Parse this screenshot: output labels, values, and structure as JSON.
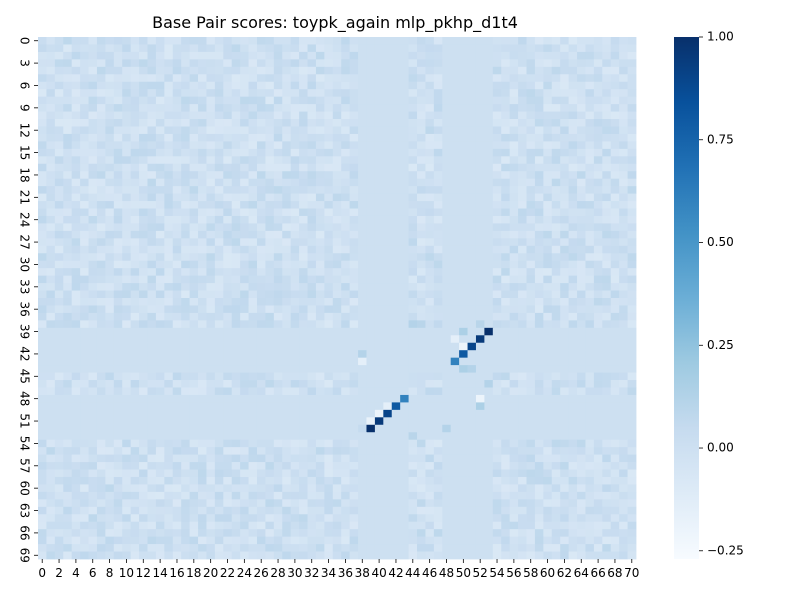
{
  "chart_data": {
    "type": "heatmap",
    "title": "Base Pair scores: toypk_again mlp_pkhp_d1t4",
    "xlabel": "",
    "ylabel": "",
    "n_rows": 70,
    "n_cols": 71,
    "x_tick_labels": [
      "0",
      "2",
      "4",
      "6",
      "8",
      "10",
      "12",
      "14",
      "16",
      "18",
      "20",
      "22",
      "24",
      "26",
      "28",
      "30",
      "32",
      "34",
      "36",
      "38",
      "40",
      "42",
      "44",
      "46",
      "48",
      "50",
      "52",
      "54",
      "56",
      "58",
      "60",
      "62",
      "64",
      "66",
      "68",
      "70"
    ],
    "y_tick_labels": [
      "0",
      "3",
      "6",
      "9",
      "12",
      "15",
      "18",
      "21",
      "24",
      "27",
      "30",
      "33",
      "36",
      "39",
      "42",
      "45",
      "48",
      "51",
      "54",
      "57",
      "60",
      "63",
      "66",
      "69"
    ],
    "y_tick_positions": [
      0,
      3,
      6,
      9,
      12,
      15,
      18,
      21,
      24,
      27,
      30,
      33,
      36,
      39,
      42,
      45,
      48,
      51,
      54,
      57,
      60,
      63,
      66,
      69
    ],
    "colorbar": {
      "min": -0.27,
      "max": 1.0,
      "tick_labels": [
        "1.00",
        "0.75",
        "0.50",
        "0.25",
        "0.00",
        "−0.25"
      ],
      "tick_values": [
        1.0,
        0.75,
        0.5,
        0.25,
        0.0,
        -0.25
      ]
    },
    "colormap": "Blues",
    "background_value": 0.0,
    "background_noise_amplitude": 0.08,
    "uniform_rows": [
      39,
      40,
      41,
      42,
      43,
      44,
      48,
      49,
      50,
      51,
      52,
      53
    ],
    "uniform_cols": [
      38,
      39,
      40,
      41,
      42,
      43,
      48,
      49,
      50,
      51,
      52,
      53
    ],
    "strong_pairs": [
      {
        "row": 39,
        "col": 53,
        "value": 1.0
      },
      {
        "row": 40,
        "col": 52,
        "value": 0.95
      },
      {
        "row": 41,
        "col": 51,
        "value": 0.9
      },
      {
        "row": 42,
        "col": 50,
        "value": 0.8
      },
      {
        "row": 43,
        "col": 49,
        "value": 0.6
      },
      {
        "row": 48,
        "col": 43,
        "value": 0.6
      },
      {
        "row": 49,
        "col": 42,
        "value": 0.8
      },
      {
        "row": 50,
        "col": 41,
        "value": 0.9
      },
      {
        "row": 51,
        "col": 40,
        "value": 0.95
      },
      {
        "row": 52,
        "col": 39,
        "value": 1.0
      }
    ],
    "weak_cells": [
      {
        "row": 38,
        "col": 44,
        "value": 0.12
      },
      {
        "row": 38,
        "col": 45,
        "value": 0.1
      },
      {
        "row": 38,
        "col": 52,
        "value": 0.1
      },
      {
        "row": 39,
        "col": 50,
        "value": 0.15
      },
      {
        "row": 40,
        "col": 49,
        "value": -0.15
      },
      {
        "row": 41,
        "col": 50,
        "value": -0.2
      },
      {
        "row": 42,
        "col": 38,
        "value": 0.12
      },
      {
        "row": 43,
        "col": 38,
        "value": -0.15
      },
      {
        "row": 44,
        "col": 50,
        "value": 0.15
      },
      {
        "row": 44,
        "col": 51,
        "value": 0.12
      },
      {
        "row": 46,
        "col": 53,
        "value": 0.12
      },
      {
        "row": 48,
        "col": 52,
        "value": -0.2
      },
      {
        "row": 49,
        "col": 52,
        "value": 0.15
      },
      {
        "row": 49,
        "col": 41,
        "value": -0.15
      },
      {
        "row": 50,
        "col": 40,
        "value": -0.2
      },
      {
        "row": 51,
        "col": 39,
        "value": -0.18
      },
      {
        "row": 52,
        "col": 38,
        "value": 0.05
      },
      {
        "row": 52,
        "col": 48,
        "value": 0.12
      },
      {
        "row": 53,
        "col": 44,
        "value": 0.1
      }
    ]
  }
}
